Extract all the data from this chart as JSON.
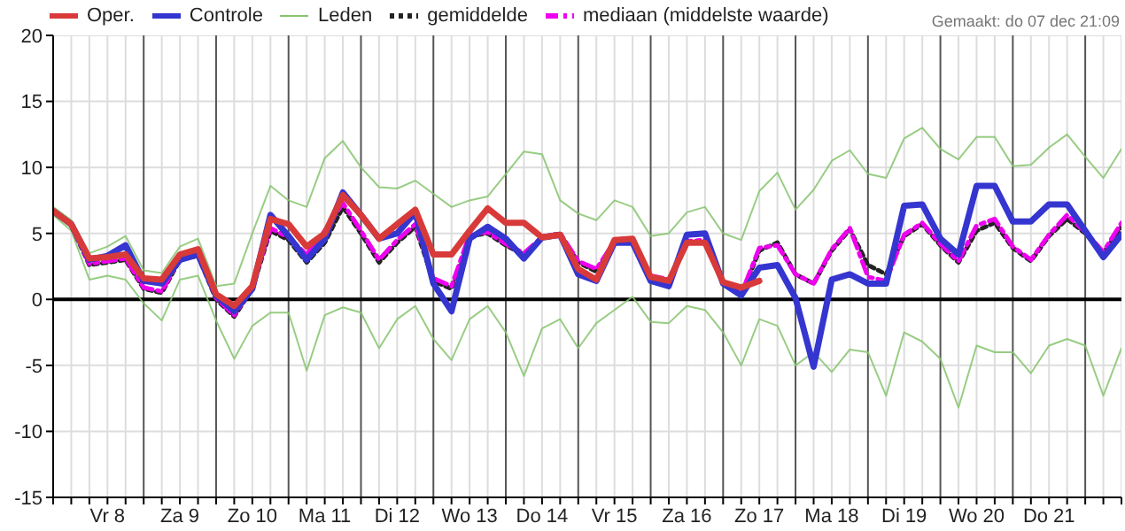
{
  "chart_data": {
    "type": "line",
    "annotations": [
      "Gemaakt: do 07 dec 21:09"
    ],
    "categories": [
      null,
      null,
      null,
      "Vr 8",
      null,
      null,
      null,
      "Za 9",
      null,
      null,
      null,
      "Zo 10",
      null,
      null,
      null,
      "Ma 11",
      null,
      null,
      null,
      "Di 12",
      null,
      null,
      null,
      "Wo 13",
      null,
      null,
      null,
      "Do 14",
      null,
      null,
      null,
      "Vr 15",
      null,
      null,
      null,
      "Za 16",
      null,
      null,
      null,
      "Zo 17",
      null,
      null,
      null,
      "Ma 18",
      null,
      null,
      null,
      "Di 19",
      null,
      null,
      null,
      "Wo 20",
      null,
      null,
      null,
      "Do 21",
      null,
      null,
      null,
      null
    ],
    "ylim": [
      -15,
      20
    ],
    "yticks": [
      -15,
      -10,
      -5,
      0,
      5,
      10,
      15,
      20
    ],
    "grid": true,
    "legend": "top left",
    "marker": "none",
    "ref_lines": [
      {
        "axis": "y",
        "value": 0,
        "label": null,
        "color": "#000000"
      }
    ],
    "series": [
      {
        "name": "Oper.",
        "color": "#d83a3a",
        "line_style": "solid",
        "values": [
          6.7,
          5.7,
          3.1,
          3.2,
          3.4,
          1.6,
          1.5,
          3.4,
          3.8,
          0.4,
          -0.5,
          1.0,
          6.1,
          5.7,
          4.0,
          5.0,
          7.9,
          6.4,
          4.6,
          5.7,
          6.8,
          3.4,
          3.4,
          5.2,
          6.9,
          5.8,
          5.8,
          4.7,
          4.9,
          2.3,
          1.5,
          4.5,
          4.6,
          1.7,
          1.4,
          4.3,
          4.3,
          1.3,
          0.9,
          1.4,
          null,
          null,
          null,
          null,
          null,
          null,
          null,
          null,
          null,
          null,
          null,
          null,
          null,
          null,
          null,
          null,
          null,
          null,
          null,
          null
        ]
      },
      {
        "name": "Controle",
        "color": "#3535d0",
        "line_style": "solid",
        "values": [
          6.7,
          5.7,
          3.0,
          3.3,
          4.1,
          1.4,
          1.2,
          3.0,
          3.4,
          0.3,
          -0.9,
          0.8,
          6.4,
          4.8,
          3.0,
          4.6,
          8.1,
          6.4,
          4.6,
          5.0,
          6.6,
          1.2,
          -0.9,
          4.6,
          5.5,
          4.6,
          3.1,
          4.7,
          4.9,
          1.9,
          1.4,
          4.3,
          4.3,
          1.4,
          1.0,
          4.9,
          5.0,
          1.2,
          0.3,
          2.4,
          2.6,
          0.1,
          -5.1,
          1.5,
          1.9,
          1.2,
          1.2,
          7.1,
          7.2,
          4.6,
          3.4,
          8.6,
          8.6,
          5.9,
          5.9,
          7.2,
          7.2,
          5.2,
          3.2,
          4.9
        ]
      },
      {
        "name": "Leden",
        "color": "#86c46e",
        "line_style": "solid",
        "values": [
          7.0,
          6.0,
          3.5,
          4.0,
          4.8,
          2.2,
          2.0,
          4.0,
          4.6,
          1.0,
          1.2,
          5.0,
          8.6,
          7.5,
          7.0,
          10.7,
          12.0,
          10.0,
          8.5,
          8.4,
          9.0,
          8.0,
          7.0,
          7.5,
          7.8,
          9.5,
          11.2,
          11.0,
          7.5,
          6.5,
          6.0,
          7.5,
          7.0,
          4.8,
          5.0,
          6.6,
          7.0,
          5.0,
          4.5,
          8.2,
          9.6,
          6.8,
          8.3,
          10.5,
          11.3,
          9.5,
          9.2,
          12.2,
          13.0,
          11.4,
          10.6,
          12.3,
          12.3,
          10.1,
          10.2,
          11.5,
          12.5,
          10.8,
          9.2,
          11.4
        ]
      },
      {
        "color": "#86c46e",
        "line_style": "solid",
        "values": [
          6.4,
          5.2,
          1.5,
          1.8,
          1.5,
          -0.3,
          -1.6,
          1.5,
          1.8,
          -1.6,
          -4.5,
          -2.0,
          -1.0,
          -1.0,
          -5.4,
          -1.2,
          -0.6,
          -1.0,
          -3.7,
          -1.5,
          -0.5,
          -3.0,
          -4.6,
          -1.5,
          -0.5,
          -2.5,
          -5.8,
          -2.2,
          -1.5,
          -3.7,
          -1.8,
          -0.8,
          0.2,
          -1.7,
          -1.8,
          -0.5,
          -0.8,
          -2.5,
          -5.0,
          -1.5,
          -2.0,
          -5.0,
          -4.0,
          -5.5,
          -3.8,
          -4.0,
          -7.3,
          -2.5,
          -3.2,
          -4.5,
          -8.2,
          -3.5,
          -4.0,
          -4.0,
          -5.6,
          -3.5,
          -3.0,
          -3.5,
          -7.3,
          -3.7
        ]
      },
      {
        "name": "gemiddelde",
        "color": "#222222",
        "line_style": "dotted",
        "values": [
          6.7,
          5.6,
          2.6,
          2.8,
          3.0,
          0.8,
          0.5,
          3.0,
          3.3,
          0.0,
          -1.3,
          0.8,
          5.2,
          4.5,
          2.8,
          4.3,
          7.0,
          5.0,
          2.8,
          4.3,
          5.5,
          1.4,
          0.8,
          4.8,
          5.0,
          4.1,
          3.4,
          4.6,
          4.9,
          2.8,
          2.1,
          4.3,
          4.4,
          1.7,
          1.4,
          4.3,
          4.4,
          1.2,
          0.3,
          3.7,
          4.3,
          1.9,
          1.2,
          3.7,
          5.3,
          2.6,
          1.9,
          4.8,
          5.7,
          4.1,
          2.8,
          5.2,
          5.8,
          3.9,
          2.9,
          4.8,
          6.1,
          5.0,
          3.5,
          5.5
        ]
      },
      {
        "name": "mediaan (middelste waarde)",
        "color": "#ee00ee",
        "line_style": "dashed",
        "values": [
          6.7,
          5.6,
          2.7,
          2.9,
          3.1,
          0.9,
          0.6,
          3.1,
          3.4,
          0.1,
          -1.2,
          0.9,
          5.4,
          4.7,
          3.4,
          5.2,
          7.3,
          5.2,
          3.0,
          4.5,
          5.7,
          1.6,
          1.0,
          4.9,
          5.1,
          4.2,
          3.5,
          4.7,
          5.0,
          2.9,
          2.3,
          4.4,
          4.5,
          1.8,
          1.5,
          4.4,
          4.5,
          1.3,
          0.4,
          3.9,
          4.1,
          1.9,
          1.2,
          3.8,
          5.4,
          1.7,
          1.4,
          4.9,
          5.8,
          4.2,
          2.9,
          5.6,
          6.1,
          4.0,
          3.0,
          4.9,
          6.4,
          5.1,
          3.6,
          5.8
        ]
      }
    ]
  }
}
